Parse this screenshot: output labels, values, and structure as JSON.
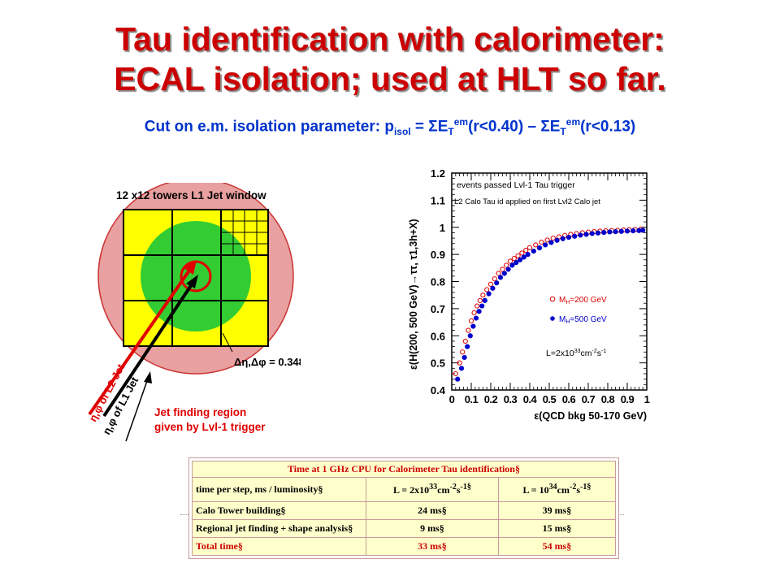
{
  "title": {
    "line1": "Tau identification with calorimeter:",
    "line2": "ECAL isolation; used at HLT so far."
  },
  "subtitle": {
    "prefix": "Cut on e.m. isolation parameter: p",
    "sub_isol": "isol",
    "eq1": " = ",
    "sigma": "Σ",
    "E": "E",
    "T": "T",
    "em": "em",
    "term1": "(r<0.40) – ",
    "term2": "(r<0.13)"
  },
  "diagram": {
    "window_label": "12 x12 towers L1 Jet window",
    "deta_dphi": "Δη,Δφ = 0.348",
    "l2_jet": "η,φ of L2 Jet",
    "l1_jet": "η,φ of L1 Jet",
    "region_line1": "Jet finding region",
    "region_line2": "given by Lvl-1 trigger",
    "colors": {
      "yellow": "#ffff00",
      "green": "#33cc33",
      "pink": "#e8a0a0",
      "red": "#e00000",
      "black": "#000000"
    }
  },
  "chart_data": {
    "type": "scatter",
    "ylabel": "ε(H(200, 500 GeV)→ττ, τ1,3h+X)",
    "xlabel": "ε(QCD bkg 50-170 GeV)",
    "xlim": [
      0,
      1
    ],
    "ylim": [
      0.4,
      1.2
    ],
    "x_ticks": [
      "0",
      "0.1",
      "0.2",
      "0.3",
      "0.4",
      "0.5",
      "0.6",
      "0.7",
      "0.8",
      "0.9",
      "1"
    ],
    "y_ticks": [
      "0.4",
      "0.5",
      "0.6",
      "0.7",
      "0.8",
      "0.9",
      "1",
      "1.1",
      "1.2"
    ],
    "annotations": [
      "events passed Lvl-1 Tau trigger",
      "L2 Calo Tau id applied on first Lvl2 Calo jet",
      "L=2x10",
      "33",
      "cm",
      "-2",
      "s",
      "-1"
    ],
    "series": [
      {
        "name": "M_H=200 GeV",
        "label_main": "M",
        "label_sub": "H",
        "label_rest": "=200 GeV",
        "marker": "open-circle",
        "color": "#dd0000",
        "x": [
          0.02,
          0.04,
          0.055,
          0.07,
          0.085,
          0.1,
          0.115,
          0.13,
          0.145,
          0.16,
          0.18,
          0.2,
          0.22,
          0.24,
          0.26,
          0.28,
          0.3,
          0.32,
          0.34,
          0.36,
          0.38,
          0.4,
          0.43,
          0.46,
          0.49,
          0.52,
          0.55,
          0.58,
          0.61,
          0.64,
          0.67,
          0.7,
          0.73,
          0.76,
          0.79,
          0.82,
          0.85,
          0.88,
          0.91,
          0.94,
          0.97
        ],
        "y": [
          0.46,
          0.5,
          0.54,
          0.58,
          0.62,
          0.655,
          0.685,
          0.71,
          0.73,
          0.75,
          0.77,
          0.79,
          0.81,
          0.83,
          0.845,
          0.86,
          0.875,
          0.885,
          0.895,
          0.905,
          0.915,
          0.925,
          0.935,
          0.945,
          0.953,
          0.96,
          0.965,
          0.97,
          0.974,
          0.977,
          0.98,
          0.982,
          0.984,
          0.986,
          0.987,
          0.988,
          0.989,
          0.99,
          0.991,
          0.992,
          0.993
        ]
      },
      {
        "name": "M_H=500 GeV",
        "label_main": "M",
        "label_sub": "H",
        "label_rest": "=500 GeV",
        "marker": "filled-circle",
        "color": "#0000cc",
        "x": [
          0.03,
          0.05,
          0.065,
          0.08,
          0.095,
          0.11,
          0.125,
          0.14,
          0.155,
          0.17,
          0.19,
          0.21,
          0.23,
          0.25,
          0.27,
          0.29,
          0.31,
          0.33,
          0.35,
          0.37,
          0.39,
          0.42,
          0.45,
          0.48,
          0.51,
          0.54,
          0.57,
          0.6,
          0.63,
          0.66,
          0.69,
          0.72,
          0.75,
          0.78,
          0.81,
          0.84,
          0.87,
          0.9,
          0.93,
          0.96,
          0.98
        ],
        "y": [
          0.44,
          0.48,
          0.52,
          0.56,
          0.6,
          0.635,
          0.665,
          0.69,
          0.71,
          0.73,
          0.755,
          0.775,
          0.795,
          0.815,
          0.83,
          0.845,
          0.86,
          0.87,
          0.88,
          0.89,
          0.9,
          0.912,
          0.924,
          0.935,
          0.944,
          0.952,
          0.958,
          0.963,
          0.967,
          0.971,
          0.974,
          0.977,
          0.979,
          0.981,
          0.983,
          0.984,
          0.985,
          0.986,
          0.987,
          0.988,
          0.989
        ]
      }
    ]
  },
  "table": {
    "title": "Time at 1 GHz CPU for Calorimeter Tau identification§",
    "header": {
      "label": "time per step, ms / luminosity§",
      "c1": {
        "pre": "L = 2x10",
        "exp1": "33",
        "mid": "cm",
        "exp2": "-2",
        "mid2": "s",
        "exp3": "-1§"
      },
      "c2": {
        "pre": "L = 10",
        "exp1": "34",
        "mid": "cm",
        "exp2": "-2",
        "mid2": "s",
        "exp3": "-1§"
      }
    },
    "rows": [
      {
        "label": "Calo Tower building§",
        "v1": "24 ms§",
        "v2": "39 ms§"
      },
      {
        "label": "Regional jet finding + shape analysis§",
        "v1": "9 ms§",
        "v2": "15 ms§"
      },
      {
        "label": "Total time§",
        "v1": "33 ms§",
        "v2": "54 ms§"
      }
    ]
  }
}
